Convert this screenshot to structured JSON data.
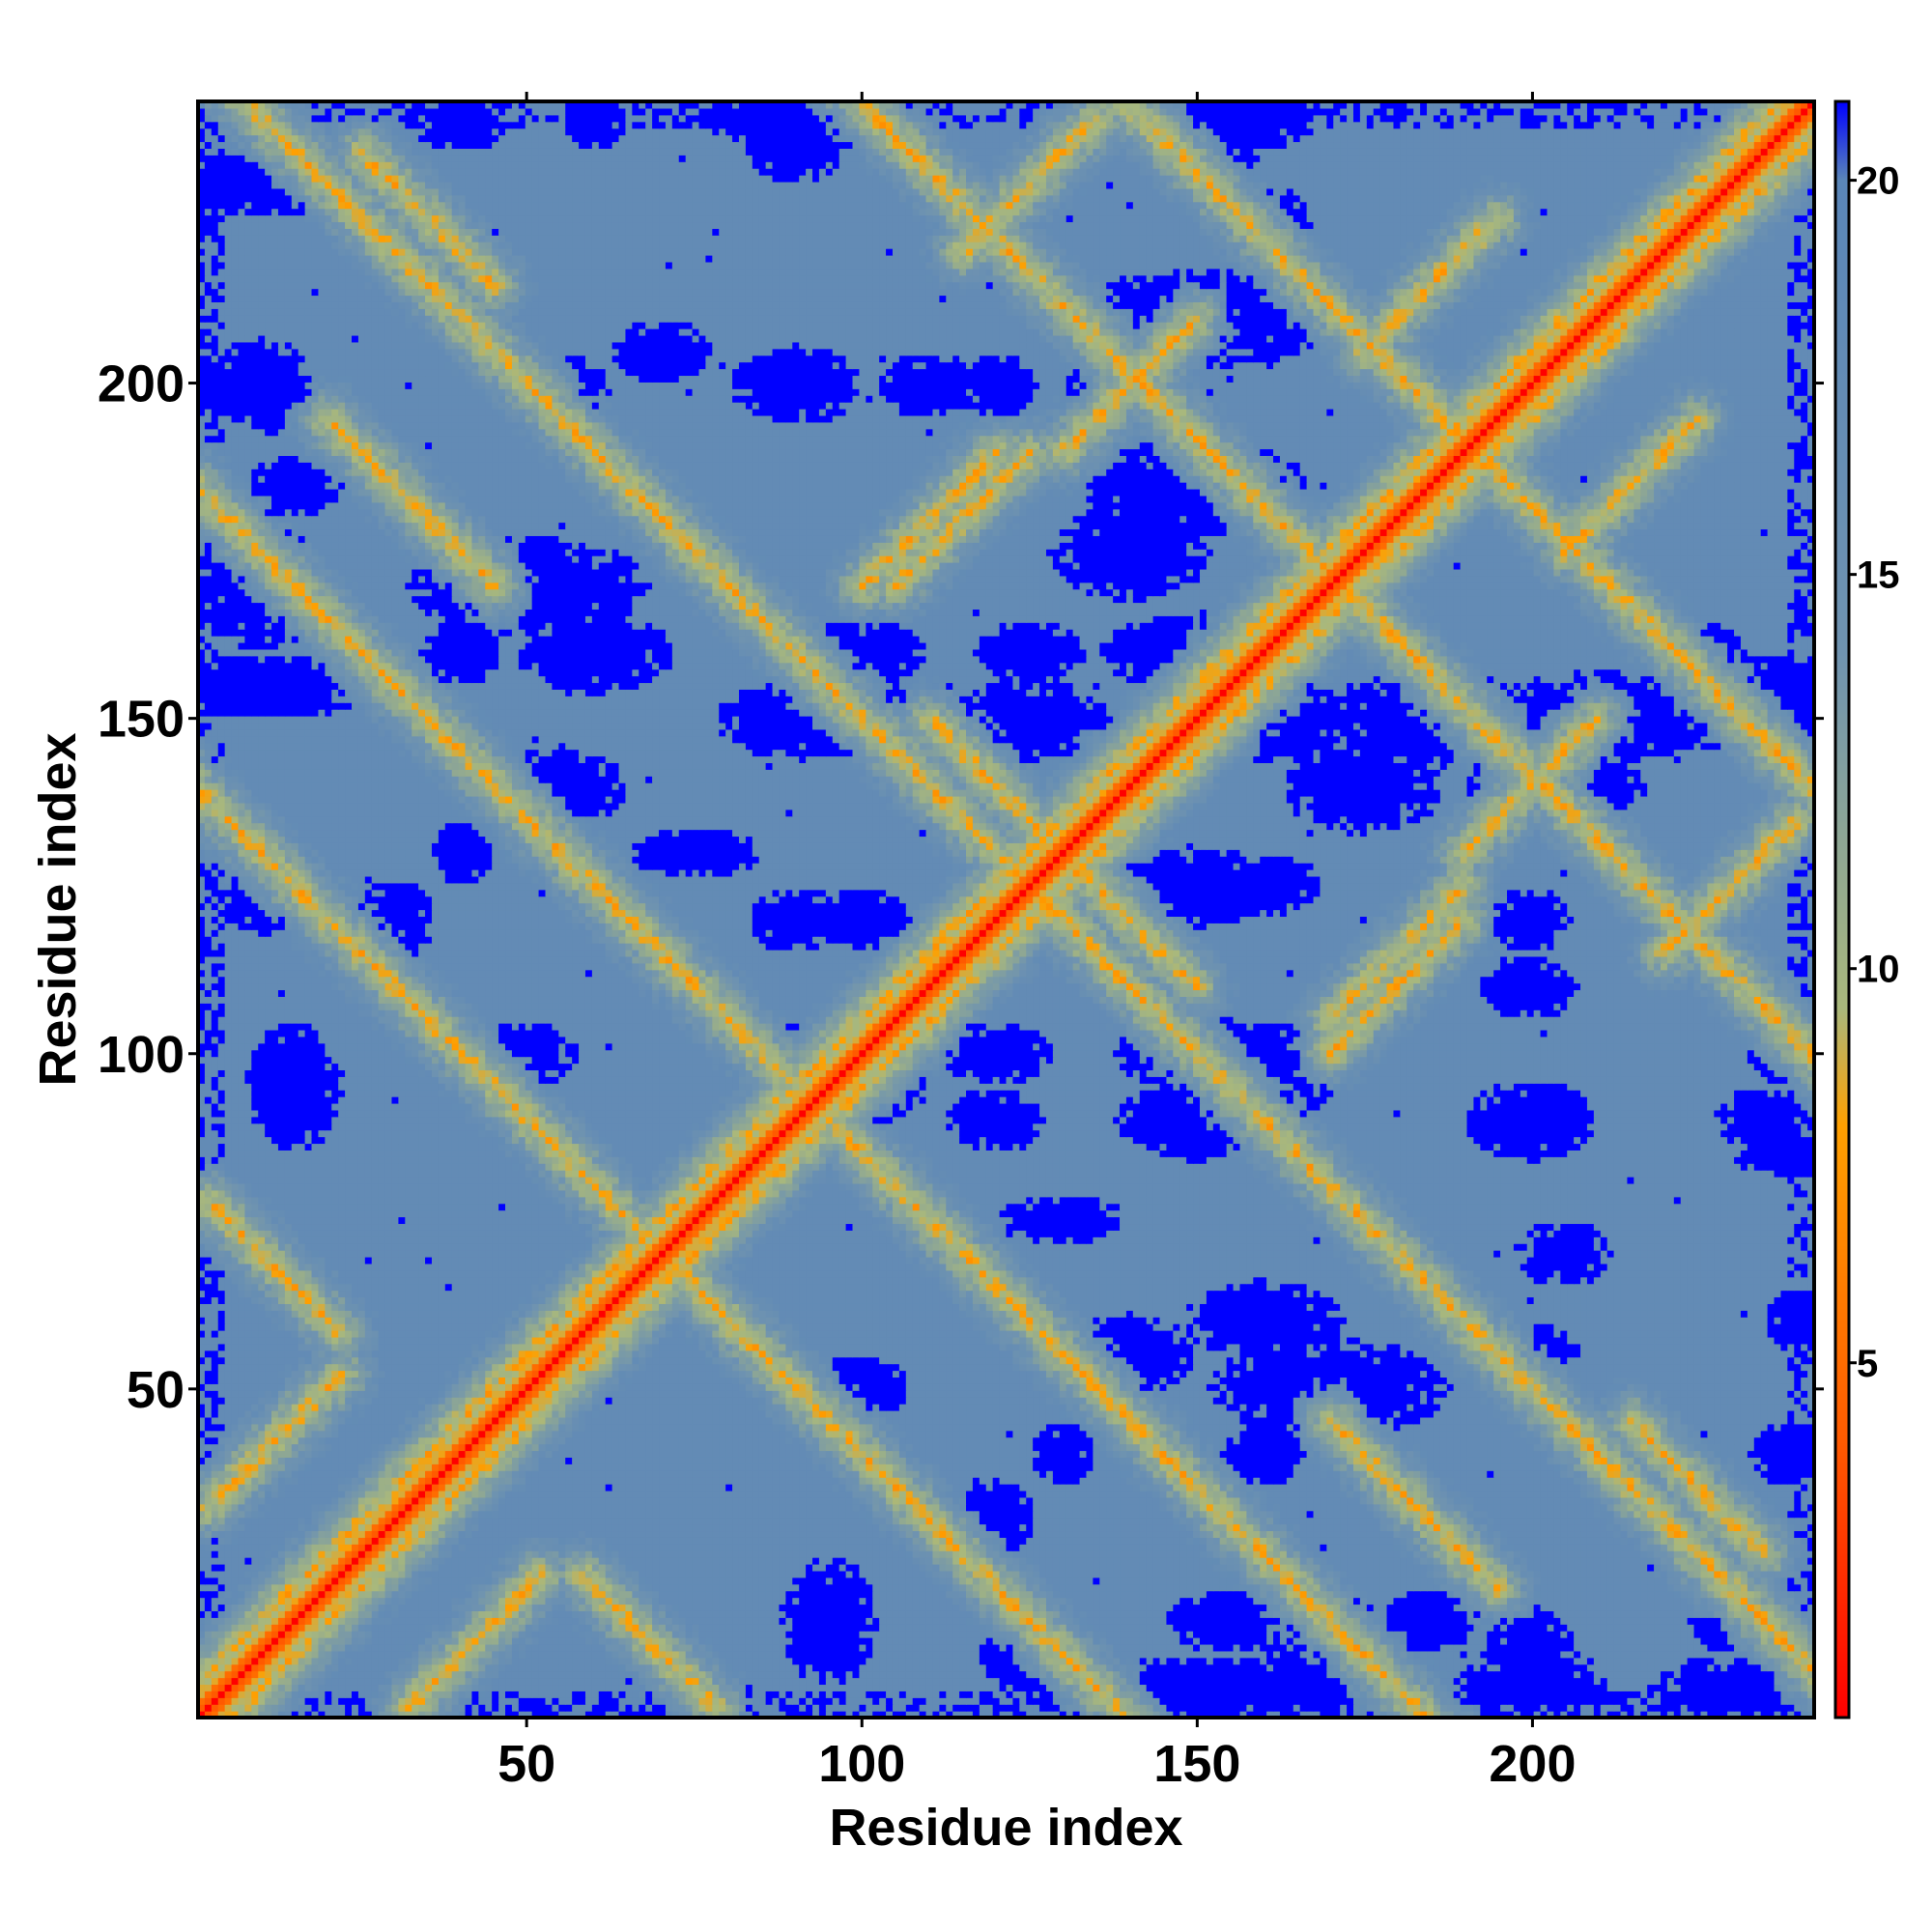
{
  "chart_data": {
    "type": "heatmap",
    "title": "",
    "xlabel": "Residue index",
    "ylabel": "Residue index",
    "xlim": [
      1,
      242
    ],
    "ylim": [
      1,
      242
    ],
    "x_ticks": [
      50,
      100,
      150,
      200
    ],
    "y_ticks": [
      50,
      100,
      150,
      200
    ],
    "n_residues": 242,
    "values_description_units": "distance",
    "colorbar": {
      "range": [
        0.5,
        21
      ],
      "ticks": [
        5,
        10,
        15,
        20
      ],
      "color_stops": [
        {
          "value": 0.5,
          "color": "#ff0000"
        },
        {
          "value": 4,
          "color": "#ff5a00"
        },
        {
          "value": 8,
          "color": "#ffa000"
        },
        {
          "value": 9.5,
          "color": "#a9b87c"
        },
        {
          "value": 14,
          "color": "#6f93b0"
        },
        {
          "value": 20,
          "color": "#5a86b8"
        },
        {
          "value": 21,
          "color": "#0000ff"
        }
      ]
    },
    "features": {
      "diagonal": "minimum distance along i = j",
      "far_contact_color": "#0000ff",
      "background_color": "#5a86b8",
      "off_diagonal_contact_bands": [
        {
          "center": [
            12,
            68
          ],
          "direction": "anti"
        },
        {
          "center": [
            42,
            12
          ],
          "direction": "parallel"
        },
        {
          "center": [
            68,
            12
          ],
          "direction": "anti"
        },
        {
          "center": [
            70,
            70
          ],
          "direction": "cross"
        },
        {
          "center": [
            90,
            95
          ],
          "direction": "cross"
        },
        {
          "center": [
            125,
            125
          ],
          "direction": "cross"
        },
        {
          "center": [
            170,
            172
          ],
          "direction": "cross"
        },
        {
          "center": [
            190,
            192
          ],
          "direction": "cross"
        },
        {
          "center": [
            180,
            35
          ],
          "direction": "anti"
        },
        {
          "center": [
            225,
            35
          ],
          "direction": "anti"
        },
        {
          "center": [
            200,
            140
          ],
          "direction": "parallel"
        },
        {
          "center": [
            180,
            110
          ],
          "direction": "parallel"
        },
        {
          "center": [
            30,
            185
          ],
          "direction": "anti"
        },
        {
          "center": [
            35,
            225
          ],
          "direction": "anti"
        },
        {
          "center": [
            115,
            180
          ],
          "direction": "parallel"
        },
        {
          "center": [
            140,
            120
          ],
          "direction": "anti"
        },
        {
          "center": [
            215,
            185
          ],
          "direction": "parallel"
        },
        {
          "center": [
            230,
            125
          ],
          "direction": "parallel"
        }
      ]
    }
  }
}
